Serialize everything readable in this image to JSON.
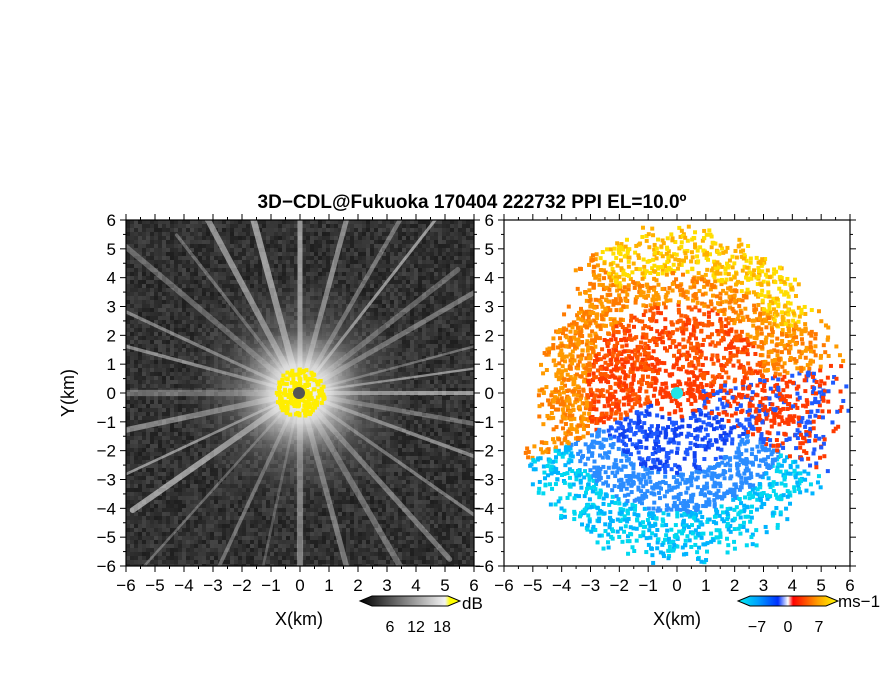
{
  "title": "3D−CDL@Fukuoka 170404 222732 PPI EL=10.0º",
  "panels": {
    "left": {
      "ylabel": "Y(km)",
      "xlabel": "X(km)",
      "colorbar": {
        "unit": "dB",
        "ticks": [
          "6",
          "12",
          "18"
        ]
      }
    },
    "right": {
      "xlabel": "X(km)",
      "colorbar": {
        "unit": "ms−1",
        "ticks": [
          "−7",
          "0",
          "7"
        ]
      }
    }
  },
  "chart_data": [
    {
      "type": "heatmap",
      "panel": "left",
      "xlabel": "X(km)",
      "ylabel": "Y(km)",
      "xlim": [
        -6,
        6
      ],
      "ylim": [
        -6,
        6
      ],
      "xticks": [
        -6,
        -5,
        -4,
        -3,
        -2,
        -1,
        0,
        1,
        2,
        3,
        4,
        5,
        6
      ],
      "yticks": [
        -6,
        -5,
        -4,
        -3,
        -2,
        -1,
        0,
        1,
        2,
        3,
        4,
        5,
        6
      ],
      "colorbar": {
        "unit": "dB",
        "ticks": [
          6,
          12,
          18
        ]
      },
      "colors": {
        "low": "#2e2e2e",
        "high": "#ffffff",
        "saturated": "#ffee00",
        "center": "#555555"
      }
    },
    {
      "type": "heatmap",
      "panel": "right",
      "xlabel": "X(km)",
      "ylabel": "",
      "xlim": [
        -6,
        6
      ],
      "ylim": [
        -6,
        6
      ],
      "xticks": [
        -6,
        -5,
        -4,
        -3,
        -2,
        -1,
        0,
        1,
        2,
        3,
        4,
        5,
        6
      ],
      "yticks": [
        -6,
        -5,
        -4,
        -3,
        -2,
        -1,
        0,
        1,
        2,
        3,
        4,
        5,
        6
      ],
      "colorbar": {
        "unit": "ms−1",
        "ticks": [
          -7,
          0,
          7
        ]
      },
      "colors": {
        "negative": "#1e5aff",
        "near_zero_neg": "#3c9bff",
        "far_neg": "#00e6f0",
        "positive": "#ff3a00",
        "far_pos": "#ffdd00",
        "center": "#22e6e6"
      }
    }
  ]
}
